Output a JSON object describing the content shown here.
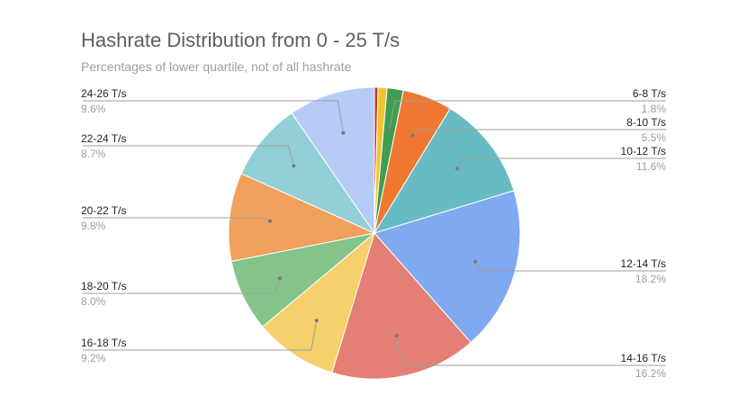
{
  "chart_data": {
    "type": "pie",
    "title": "Hashrate Distribution from 0 - 25 T/s",
    "subtitle": "Percentages of lower quartile, not of all hashrate",
    "slices": [
      {
        "label": "",
        "pct": "",
        "value": 0.4,
        "color": "#c0392b"
      },
      {
        "label": "",
        "pct": "",
        "value": 1.0,
        "color": "#f4c430"
      },
      {
        "label": "6-8 T/s",
        "pct": "1.8%",
        "value": 1.8,
        "color": "#3f9e4f"
      },
      {
        "label": "8-10 T/s",
        "pct": "5.5%",
        "value": 5.5,
        "color": "#ef7732"
      },
      {
        "label": "10-12 T/s",
        "pct": "11.6%",
        "value": 11.6,
        "color": "#67bbc4"
      },
      {
        "label": "12-14 T/s",
        "pct": "18.2%",
        "value": 18.2,
        "color": "#80a9f0"
      },
      {
        "label": "14-16 T/s",
        "pct": "16.2%",
        "value": 16.2,
        "color": "#e37f74"
      },
      {
        "label": "16-18 T/s",
        "pct": "9.2%",
        "value": 9.2,
        "color": "#f6d06b"
      },
      {
        "label": "18-20 T/s",
        "pct": "8.0%",
        "value": 8.0,
        "color": "#84c48a"
      },
      {
        "label": "20-22 T/s",
        "pct": "9.8%",
        "value": 9.8,
        "color": "#f1a05e"
      },
      {
        "label": "22-24 T/s",
        "pct": "8.7%",
        "value": 8.7,
        "color": "#92cfd6"
      },
      {
        "label": "24-26 T/s",
        "pct": "9.6%",
        "value": 9.6,
        "color": "#b7cbf7"
      }
    ]
  }
}
